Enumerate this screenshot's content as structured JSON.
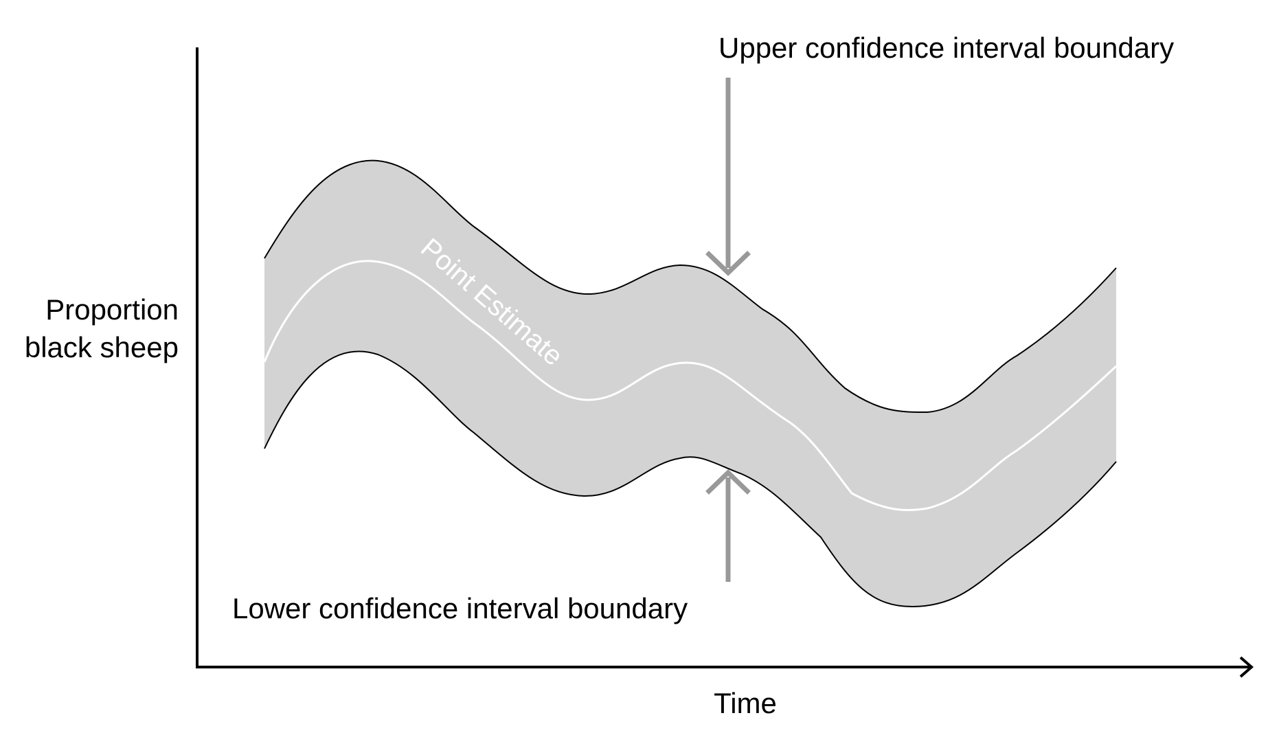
{
  "diagram": {
    "y_axis_label_lines": [
      "Proportion",
      "black sheep"
    ],
    "x_axis_label": "Time",
    "upper_boundary_label": "Upper confidence interval boundary",
    "lower_boundary_label": "Lower confidence interval boundary",
    "point_estimate_label": "Point Estimate"
  },
  "colors": {
    "band_fill": "#d3d3d3",
    "boundary_line": "#000000",
    "estimate_line": "#ffffff",
    "arrow": "#999999",
    "axis": "#000000"
  }
}
